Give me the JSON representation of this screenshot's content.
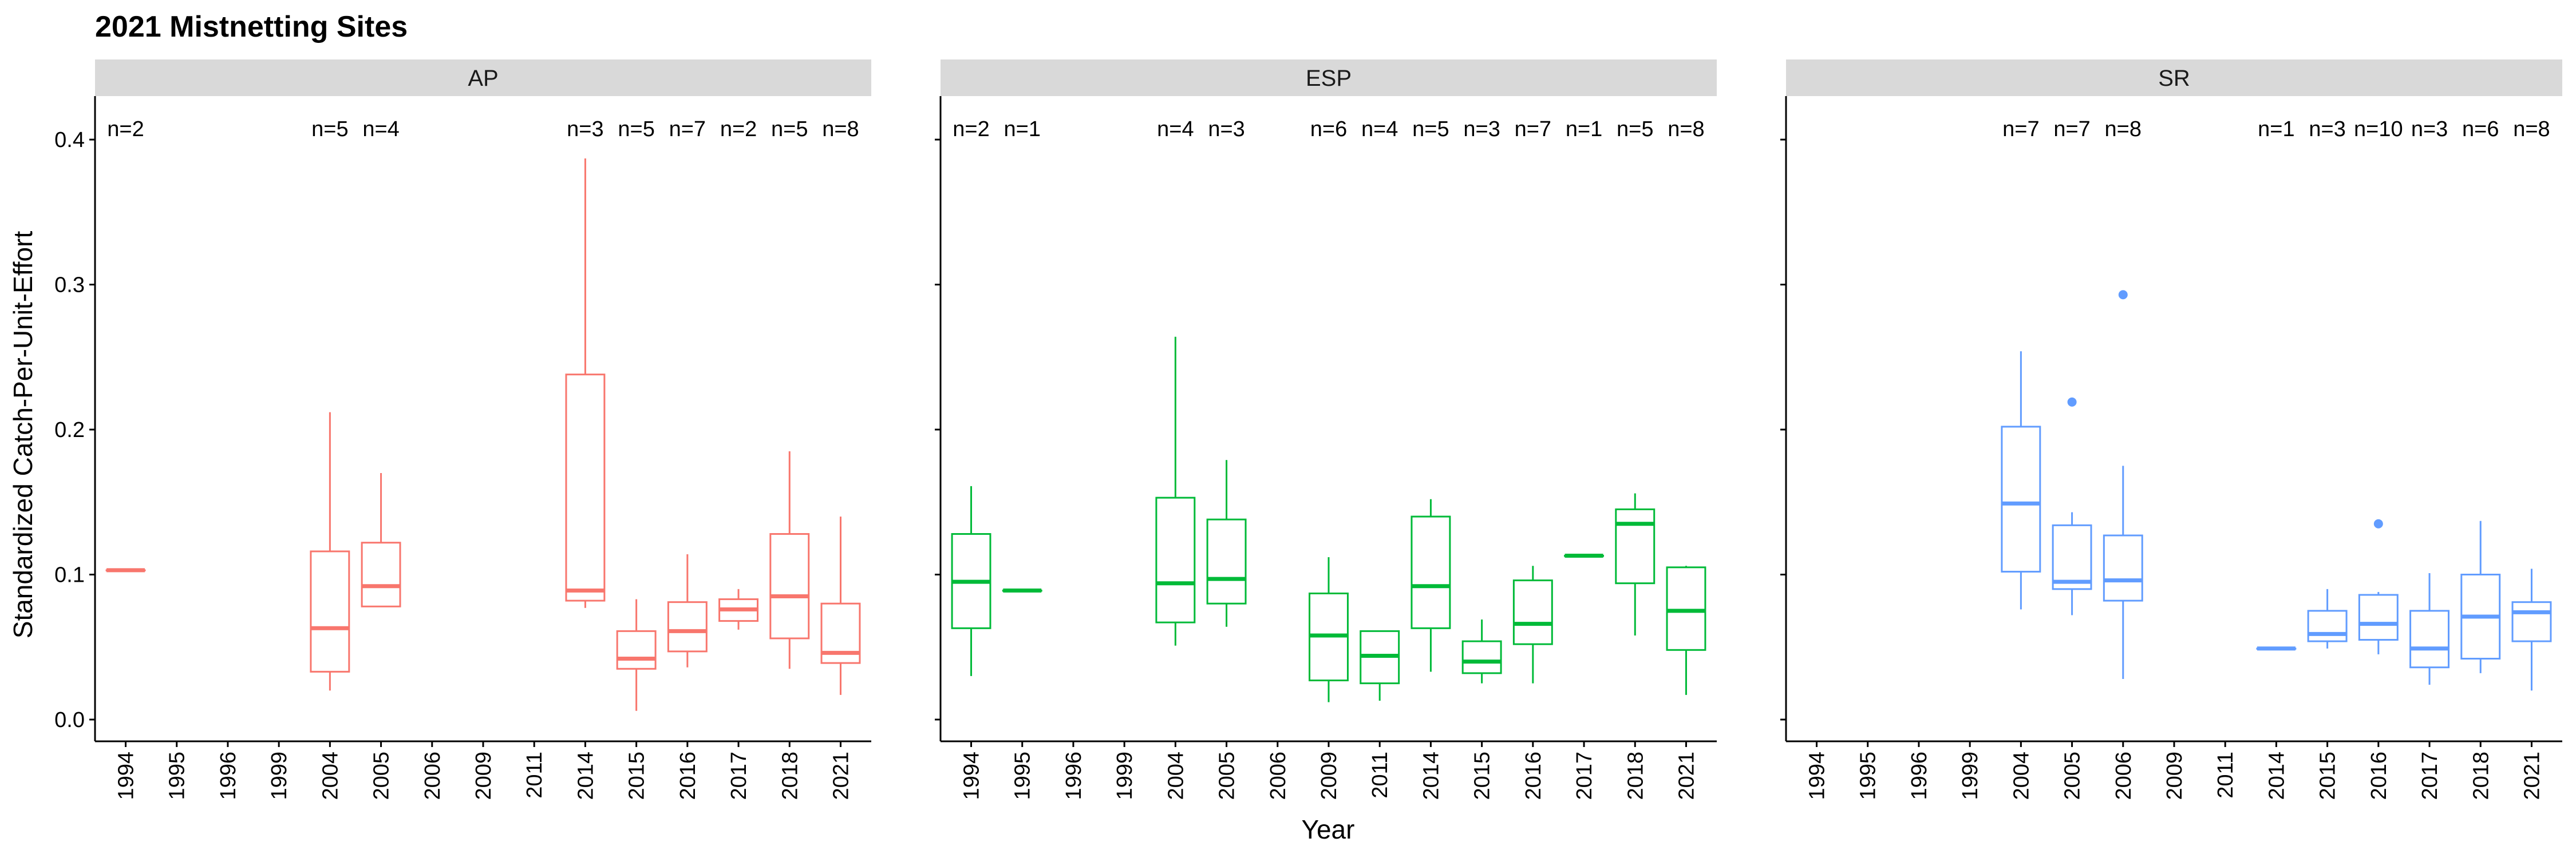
{
  "chart_data": {
    "type": "boxplot",
    "title": "2021 Mistnetting Sites",
    "xlabel": "Year",
    "ylabel": "Standardized Catch-Per-Unit-Effort",
    "ylim": [
      -0.015,
      0.43
    ],
    "yticks": [
      0.0,
      0.1,
      0.2,
      0.3,
      0.4
    ],
    "ytick_labels": [
      "0.0",
      "0.1",
      "0.2",
      "0.3",
      "0.4"
    ],
    "categories": [
      "1994",
      "1995",
      "1996",
      "1999",
      "2004",
      "2005",
      "2006",
      "2009",
      "2011",
      "2014",
      "2015",
      "2016",
      "2017",
      "2018",
      "2021"
    ],
    "grid": false,
    "legend": "none",
    "panels": [
      {
        "name": "AP",
        "color": "#F8766D",
        "boxes": [
          {
            "x": "1994",
            "n": "n=2",
            "min": 0.103,
            "q1": 0.103,
            "median": 0.103,
            "q3": 0.103,
            "max": 0.103,
            "outliers": []
          },
          {
            "x": "2004",
            "n": "n=5",
            "min": 0.02,
            "q1": 0.033,
            "median": 0.063,
            "q3": 0.116,
            "max": 0.212,
            "outliers": []
          },
          {
            "x": "2005",
            "n": "n=4",
            "min": 0.078,
            "q1": 0.078,
            "median": 0.092,
            "q3": 0.122,
            "max": 0.17,
            "outliers": []
          },
          {
            "x": "2014",
            "n": "n=3",
            "min": 0.077,
            "q1": 0.082,
            "median": 0.089,
            "q3": 0.238,
            "max": 0.387,
            "outliers": []
          },
          {
            "x": "2015",
            "n": "n=5",
            "min": 0.006,
            "q1": 0.035,
            "median": 0.042,
            "q3": 0.061,
            "max": 0.083,
            "outliers": []
          },
          {
            "x": "2016",
            "n": "n=7",
            "min": 0.036,
            "q1": 0.047,
            "median": 0.061,
            "q3": 0.081,
            "max": 0.114,
            "outliers": []
          },
          {
            "x": "2017",
            "n": "n=2",
            "min": 0.062,
            "q1": 0.068,
            "median": 0.076,
            "q3": 0.083,
            "max": 0.09,
            "outliers": []
          },
          {
            "x": "2018",
            "n": "n=5",
            "min": 0.035,
            "q1": 0.056,
            "median": 0.085,
            "q3": 0.128,
            "max": 0.185,
            "outliers": []
          },
          {
            "x": "2021",
            "n": "n=8",
            "min": 0.017,
            "q1": 0.039,
            "median": 0.046,
            "q3": 0.08,
            "max": 0.14,
            "outliers": []
          }
        ]
      },
      {
        "name": "ESP",
        "color": "#00BA38",
        "boxes": [
          {
            "x": "1994",
            "n": "n=2",
            "min": 0.03,
            "q1": 0.063,
            "median": 0.095,
            "q3": 0.128,
            "max": 0.161,
            "outliers": []
          },
          {
            "x": "1995",
            "n": "n=1",
            "min": 0.089,
            "q1": 0.089,
            "median": 0.089,
            "q3": 0.089,
            "max": 0.089,
            "outliers": []
          },
          {
            "x": "2004",
            "n": "n=4",
            "min": 0.051,
            "q1": 0.067,
            "median": 0.094,
            "q3": 0.153,
            "max": 0.264,
            "outliers": []
          },
          {
            "x": "2005",
            "n": "n=3",
            "min": 0.064,
            "q1": 0.08,
            "median": 0.097,
            "q3": 0.138,
            "max": 0.179,
            "outliers": []
          },
          {
            "x": "2009",
            "n": "n=6",
            "min": 0.012,
            "q1": 0.027,
            "median": 0.058,
            "q3": 0.087,
            "max": 0.112,
            "outliers": []
          },
          {
            "x": "2011",
            "n": "n=4",
            "min": 0.013,
            "q1": 0.025,
            "median": 0.044,
            "q3": 0.061,
            "max": 0.061,
            "outliers": []
          },
          {
            "x": "2014",
            "n": "n=5",
            "min": 0.033,
            "q1": 0.063,
            "median": 0.092,
            "q3": 0.14,
            "max": 0.152,
            "outliers": []
          },
          {
            "x": "2015",
            "n": "n=3",
            "min": 0.025,
            "q1": 0.032,
            "median": 0.04,
            "q3": 0.054,
            "max": 0.069,
            "outliers": []
          },
          {
            "x": "2016",
            "n": "n=7",
            "min": 0.025,
            "q1": 0.052,
            "median": 0.066,
            "q3": 0.096,
            "max": 0.106,
            "outliers": []
          },
          {
            "x": "2017",
            "n": "n=1",
            "min": 0.113,
            "q1": 0.113,
            "median": 0.113,
            "q3": 0.113,
            "max": 0.113,
            "outliers": []
          },
          {
            "x": "2018",
            "n": "n=5",
            "min": 0.058,
            "q1": 0.094,
            "median": 0.135,
            "q3": 0.145,
            "max": 0.156,
            "outliers": []
          },
          {
            "x": "2021",
            "n": "n=8",
            "min": 0.017,
            "q1": 0.048,
            "median": 0.075,
            "q3": 0.105,
            "max": 0.106,
            "outliers": []
          }
        ]
      },
      {
        "name": "SR",
        "color": "#619CFF",
        "boxes": [
          {
            "x": "2004",
            "n": "n=7",
            "min": 0.076,
            "q1": 0.102,
            "median": 0.149,
            "q3": 0.202,
            "max": 0.254,
            "outliers": []
          },
          {
            "x": "2005",
            "n": "n=7",
            "min": 0.072,
            "q1": 0.09,
            "median": 0.095,
            "q3": 0.134,
            "max": 0.143,
            "outliers": [
              0.219
            ]
          },
          {
            "x": "2006",
            "n": "n=8",
            "min": 0.028,
            "q1": 0.082,
            "median": 0.096,
            "q3": 0.127,
            "max": 0.175,
            "outliers": [
              0.293
            ]
          },
          {
            "x": "2014",
            "n": "n=1",
            "min": 0.049,
            "q1": 0.049,
            "median": 0.049,
            "q3": 0.049,
            "max": 0.049,
            "outliers": []
          },
          {
            "x": "2015",
            "n": "n=3",
            "min": 0.049,
            "q1": 0.054,
            "median": 0.059,
            "q3": 0.075,
            "max": 0.09,
            "outliers": []
          },
          {
            "x": "2016",
            "n": "n=10",
            "min": 0.045,
            "q1": 0.055,
            "median": 0.066,
            "q3": 0.086,
            "max": 0.088,
            "outliers": [
              0.135
            ]
          },
          {
            "x": "2017",
            "n": "n=3",
            "min": 0.024,
            "q1": 0.036,
            "median": 0.049,
            "q3": 0.075,
            "max": 0.101,
            "outliers": []
          },
          {
            "x": "2018",
            "n": "n=6",
            "min": 0.032,
            "q1": 0.042,
            "median": 0.071,
            "q3": 0.1,
            "max": 0.137,
            "outliers": []
          },
          {
            "x": "2021",
            "n": "n=8",
            "min": 0.02,
            "q1": 0.054,
            "median": 0.074,
            "q3": 0.081,
            "max": 0.104,
            "outliers": []
          }
        ]
      }
    ]
  }
}
